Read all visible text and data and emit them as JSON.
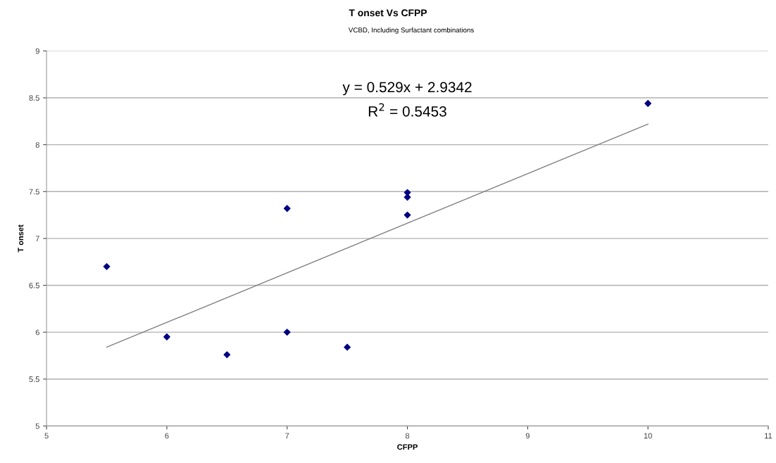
{
  "chart_data": {
    "type": "scatter",
    "title": "T onset Vs CFPP",
    "subtitle": "VCBD, Including Surfactant combinations",
    "xlabel": "CFPP",
    "ylabel": "T onset",
    "series": [
      {
        "color": "#000080",
        "marker": "diamond",
        "x": [
          5.5,
          6,
          6.5,
          7,
          7,
          7.5,
          8,
          8,
          8,
          10
        ],
        "values": [
          6.7,
          5.95,
          5.76,
          7.32,
          6.0,
          5.84,
          7.49,
          7.44,
          7.25,
          8.44
        ]
      },
      {
        "type": "line",
        "color": "#808080",
        "x": [
          5.5,
          10
        ],
        "values": [
          5.84,
          8.22
        ]
      }
    ],
    "annotations": [
      "y = 0.529x + 2.9342",
      "R$^{2}$ = 0.5453"
    ],
    "xlim": [
      5,
      11
    ],
    "xticks": [
      5,
      6,
      7,
      8,
      9,
      10,
      11
    ],
    "ylim": [
      5,
      9
    ],
    "yticks": [
      5,
      5.5,
      6,
      6.5,
      7,
      7.5,
      8,
      8.5,
      9
    ],
    "grid": "y"
  }
}
